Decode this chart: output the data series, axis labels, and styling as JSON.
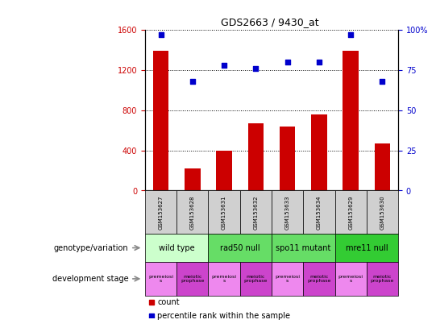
{
  "title": "GDS2663 / 9430_at",
  "samples": [
    "GSM153627",
    "GSM153628",
    "GSM153631",
    "GSM153632",
    "GSM153633",
    "GSM153634",
    "GSM153629",
    "GSM153630"
  ],
  "counts": [
    1390,
    220,
    395,
    670,
    640,
    760,
    1390,
    465
  ],
  "percentile_ranks": [
    97,
    68,
    78,
    76,
    80,
    80,
    97,
    68
  ],
  "ylim_left": [
    0,
    1600
  ],
  "ylim_right": [
    0,
    100
  ],
  "yticks_left": [
    0,
    400,
    800,
    1200,
    1600
  ],
  "yticks_right": [
    0,
    25,
    50,
    75,
    100
  ],
  "yticklabels_right": [
    "0",
    "25",
    "50",
    "75",
    "100%"
  ],
  "bar_color": "#cc0000",
  "scatter_color": "#0000cc",
  "genotype_groups": [
    {
      "label": "wild type",
      "start": 0,
      "end": 2,
      "color": "#ccffcc"
    },
    {
      "label": "rad50 null",
      "start": 2,
      "end": 4,
      "color": "#66dd66"
    },
    {
      "label": "spo11 mutant",
      "start": 4,
      "end": 6,
      "color": "#66dd66"
    },
    {
      "label": "mre11 null",
      "start": 6,
      "end": 8,
      "color": "#33cc33"
    }
  ],
  "dev_stage_groups": [
    {
      "label": "premeiosi\ns",
      "start": 0,
      "end": 1,
      "color": "#ee88ee"
    },
    {
      "label": "meiotic\nprophase",
      "start": 1,
      "end": 2,
      "color": "#cc44cc"
    },
    {
      "label": "premeiosi\ns",
      "start": 2,
      "end": 3,
      "color": "#ee88ee"
    },
    {
      "label": "meiotic\nprophase",
      "start": 3,
      "end": 4,
      "color": "#cc44cc"
    },
    {
      "label": "premeiosi\ns",
      "start": 4,
      "end": 5,
      "color": "#ee88ee"
    },
    {
      "label": "meiotic\nprophase",
      "start": 5,
      "end": 6,
      "color": "#cc44cc"
    },
    {
      "label": "premeiosi\ns",
      "start": 6,
      "end": 7,
      "color": "#ee88ee"
    },
    {
      "label": "meiotic\nprophase",
      "start": 7,
      "end": 8,
      "color": "#cc44cc"
    }
  ],
  "genotype_label": "genotype/variation",
  "dev_stage_label": "development stage",
  "legend_count_label": "count",
  "legend_pct_label": "percentile rank within the sample",
  "tick_label_color_left": "#cc0000",
  "tick_label_color_right": "#0000cc",
  "sample_box_color": "#d0d0d0"
}
